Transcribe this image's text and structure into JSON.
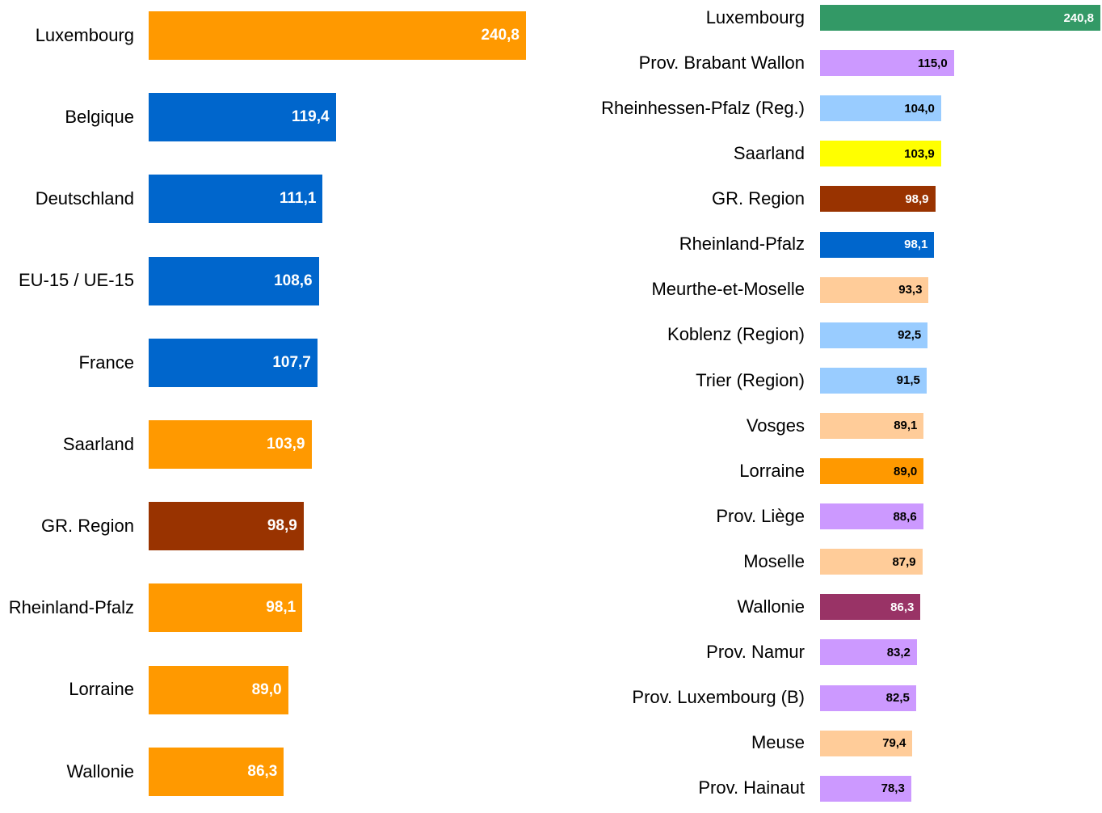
{
  "chart_data": [
    {
      "type": "bar",
      "categories": [
        "Luxembourg",
        "Belgique",
        "Deutschland",
        "EU-15 / UE-15",
        "France",
        "Saarland",
        "GR. Region",
        "Rheinland-Pfalz",
        "Lorraine",
        "Wallonie"
      ],
      "values": [
        240.8,
        119.4,
        111.1,
        108.6,
        107.7,
        103.9,
        98.9,
        98.1,
        89.0,
        86.3
      ],
      "value_labels": [
        "240,8",
        "119,4",
        "111,1",
        "108,6",
        "107,7",
        "103,9",
        "98,9",
        "98,1",
        "89,0",
        "86,3"
      ],
      "colors": [
        "#ff9900",
        "#0066cc",
        "#0066cc",
        "#0066cc",
        "#0066cc",
        "#ff9900",
        "#993300",
        "#ff9900",
        "#ff9900",
        "#ff9900"
      ],
      "label_colors": [
        "#ffffff",
        "#ffffff",
        "#ffffff",
        "#ffffff",
        "#ffffff",
        "#ffffff",
        "#ffffff",
        "#ffffff",
        "#ffffff",
        "#ffffff"
      ]
    },
    {
      "type": "bar",
      "categories": [
        "Luxembourg",
        "Prov. Brabant Wallon",
        "Rheinhessen-Pfalz (Reg.)",
        "Saarland",
        "GR. Region",
        "Rheinland-Pfalz",
        "Meurthe-et-Moselle",
        "Koblenz (Region)",
        "Trier (Region)",
        "Vosges",
        "Lorraine",
        "Prov. Liège",
        "Moselle",
        "Wallonie",
        "Prov. Namur",
        "Prov. Luxembourg (B)",
        "Meuse",
        "Prov. Hainaut"
      ],
      "values": [
        240.8,
        115.0,
        104.0,
        103.9,
        98.9,
        98.1,
        93.3,
        92.5,
        91.5,
        89.1,
        89.0,
        88.6,
        87.9,
        86.3,
        83.2,
        82.5,
        79.4,
        78.3
      ],
      "value_labels": [
        "240,8",
        "115,0",
        "104,0",
        "103,9",
        "98,9",
        "98,1",
        "93,3",
        "92,5",
        "91,5",
        "89,1",
        "89,0",
        "88,6",
        "87,9",
        "86,3",
        "83,2",
        "82,5",
        "79,4",
        "78,3"
      ],
      "colors": [
        "#339966",
        "#cc99ff",
        "#99ccff",
        "#ffff00",
        "#993300",
        "#0066cc",
        "#ffcc99",
        "#99ccff",
        "#99ccff",
        "#ffcc99",
        "#ff9900",
        "#cc99ff",
        "#ffcc99",
        "#993366",
        "#cc99ff",
        "#cc99ff",
        "#ffcc99",
        "#cc99ff"
      ],
      "label_colors": [
        "#ffffff",
        "#000000",
        "#000000",
        "#000000",
        "#ffffff",
        "#ffffff",
        "#000000",
        "#000000",
        "#000000",
        "#000000",
        "#000000",
        "#000000",
        "#000000",
        "#ffffff",
        "#000000",
        "#000000",
        "#000000",
        "#000000"
      ]
    }
  ]
}
